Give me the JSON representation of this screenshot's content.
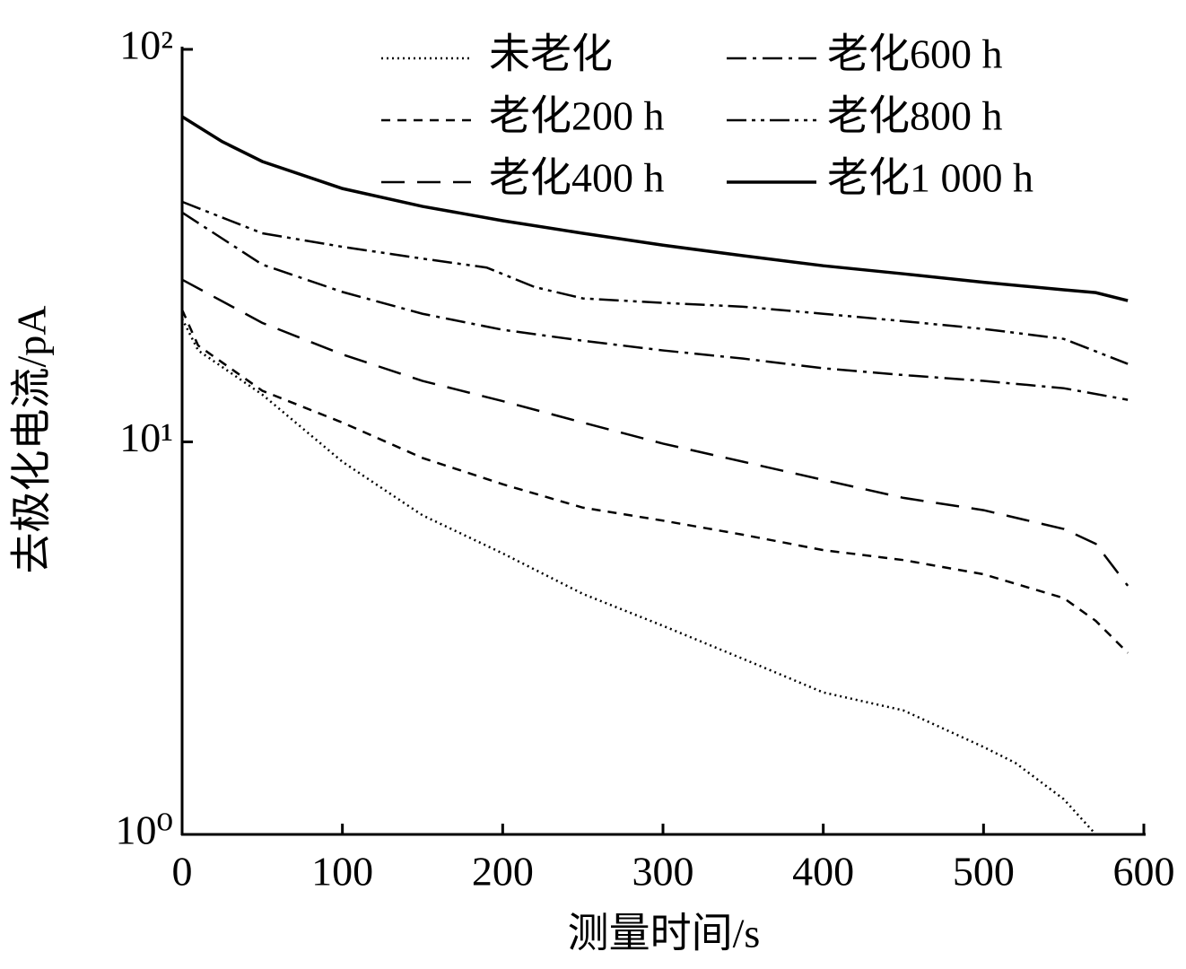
{
  "chart_data": {
    "type": "line",
    "x_label": "测量时间/s",
    "y_label": "去极化电流/pA",
    "xlim": [
      0,
      600
    ],
    "xticks": [
      0,
      100,
      200,
      300,
      400,
      500,
      600
    ],
    "ylim": [
      1,
      100
    ],
    "log_y": true,
    "yticks": [
      {
        "value": 1,
        "label": "10⁰"
      },
      {
        "value": 10,
        "label": "10¹"
      },
      {
        "value": 100,
        "label": "10²"
      }
    ],
    "legend": "top",
    "series": [
      {
        "name": "未老化",
        "color": "#000000",
        "style": "dotted",
        "x": [
          0,
          10,
          50,
          100,
          150,
          200,
          250,
          300,
          350,
          400,
          450,
          500,
          520,
          550,
          570
        ],
        "values": [
          20.6,
          17.1,
          13.2,
          8.9,
          6.5,
          5.2,
          4.1,
          3.4,
          2.8,
          2.3,
          2.07,
          1.67,
          1.52,
          1.23,
          1.0
        ]
      },
      {
        "name": "老化200 h",
        "color": "#000000",
        "style": "short-dash",
        "x": [
          0,
          10,
          50,
          100,
          150,
          200,
          250,
          300,
          350,
          400,
          450,
          500,
          550,
          570,
          590
        ],
        "values": [
          21.7,
          17.6,
          13.5,
          11.2,
          9.1,
          7.8,
          6.8,
          6.3,
          5.8,
          5.3,
          5.0,
          4.6,
          4.0,
          3.5,
          2.9
        ]
      },
      {
        "name": "老化400 h",
        "color": "#000000",
        "style": "long-dash",
        "x": [
          0,
          50,
          100,
          150,
          200,
          250,
          300,
          350,
          400,
          450,
          500,
          550,
          570,
          590
        ],
        "values": [
          25.9,
          20.1,
          16.7,
          14.3,
          12.7,
          11.2,
          9.9,
          8.9,
          8.0,
          7.2,
          6.7,
          6.0,
          5.5,
          4.3
        ]
      },
      {
        "name": "老化600 h",
        "color": "#000000",
        "style": "dash-dot",
        "x": [
          0,
          50,
          100,
          150,
          200,
          250,
          300,
          350,
          400,
          450,
          500,
          550,
          590
        ],
        "values": [
          38.4,
          28.3,
          24.1,
          21.2,
          19.3,
          18.1,
          17.1,
          16.3,
          15.4,
          14.8,
          14.3,
          13.7,
          12.8
        ]
      },
      {
        "name": "老化800 h",
        "color": "#000000",
        "style": "dash-dot-dot",
        "x": [
          0,
          50,
          100,
          150,
          190,
          220,
          250,
          300,
          350,
          400,
          450,
          500,
          550,
          590
        ],
        "values": [
          40.9,
          34.0,
          31.4,
          29.3,
          27.8,
          24.8,
          23.2,
          22.6,
          22.1,
          21.2,
          20.3,
          19.4,
          18.3,
          15.8
        ]
      },
      {
        "name": "老化1 000 h",
        "color": "#000000",
        "style": "solid",
        "x": [
          0,
          25,
          50,
          100,
          150,
          200,
          250,
          300,
          350,
          400,
          450,
          500,
          550,
          570,
          590
        ],
        "values": [
          67.4,
          58.2,
          51.8,
          44.2,
          39.8,
          36.6,
          34.0,
          31.7,
          29.8,
          28.1,
          26.8,
          25.5,
          24.4,
          24.0,
          22.9
        ]
      }
    ]
  }
}
